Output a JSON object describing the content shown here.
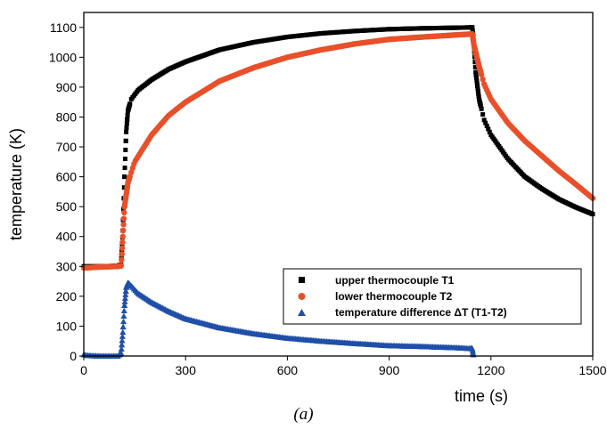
{
  "caption": "(a)",
  "chart_data": {
    "type": "scatter",
    "xlabel": "time (s)",
    "ylabel": "temperature (K)",
    "xlim": [
      0,
      1500
    ],
    "ylim": [
      0,
      1150
    ],
    "x_ticks": [
      0,
      300,
      600,
      900,
      1200,
      1500
    ],
    "y_ticks": [
      0,
      100,
      200,
      300,
      400,
      500,
      600,
      700,
      800,
      900,
      1000,
      1100
    ],
    "x_tick_labels": [
      "0",
      "300",
      "600",
      "900",
      "1200",
      "1500"
    ],
    "y_tick_labels": [
      "0",
      "100",
      "200",
      "300",
      "400",
      "500",
      "600",
      "700",
      "800",
      "900",
      "1000",
      "1100"
    ],
    "grid": false,
    "legend_position": "bottom-right",
    "series": [
      {
        "name": "upper thermocouple T1",
        "marker": "square",
        "color": "#000000",
        "points": [
          [
            0,
            300
          ],
          [
            50,
            300
          ],
          [
            100,
            302
          ],
          [
            110,
            305
          ],
          [
            115,
            420
          ],
          [
            120,
            600
          ],
          [
            125,
            750
          ],
          [
            130,
            820
          ],
          [
            140,
            860
          ],
          [
            160,
            890
          ],
          [
            200,
            925
          ],
          [
            250,
            960
          ],
          [
            300,
            985
          ],
          [
            400,
            1025
          ],
          [
            500,
            1050
          ],
          [
            600,
            1068
          ],
          [
            700,
            1080
          ],
          [
            800,
            1088
          ],
          [
            900,
            1094
          ],
          [
            1000,
            1097
          ],
          [
            1100,
            1099
          ],
          [
            1145,
            1100
          ],
          [
            1148,
            1070
          ],
          [
            1155,
            950
          ],
          [
            1165,
            860
          ],
          [
            1180,
            790
          ],
          [
            1200,
            740
          ],
          [
            1250,
            660
          ],
          [
            1300,
            600
          ],
          [
            1350,
            560
          ],
          [
            1400,
            525
          ],
          [
            1450,
            498
          ],
          [
            1500,
            475
          ]
        ]
      },
      {
        "name": "lower thermocouple T2",
        "marker": "circle",
        "color": "#e8502a",
        "points": [
          [
            0,
            295
          ],
          [
            50,
            298
          ],
          [
            100,
            300
          ],
          [
            110,
            302
          ],
          [
            115,
            400
          ],
          [
            120,
            500
          ],
          [
            130,
            580
          ],
          [
            150,
            650
          ],
          [
            200,
            740
          ],
          [
            250,
            805
          ],
          [
            300,
            850
          ],
          [
            400,
            920
          ],
          [
            500,
            965
          ],
          [
            600,
            1000
          ],
          [
            700,
            1025
          ],
          [
            800,
            1045
          ],
          [
            900,
            1060
          ],
          [
            1000,
            1068
          ],
          [
            1100,
            1075
          ],
          [
            1145,
            1078
          ],
          [
            1150,
            1040
          ],
          [
            1165,
            970
          ],
          [
            1180,
            910
          ],
          [
            1200,
            860
          ],
          [
            1250,
            780
          ],
          [
            1300,
            720
          ],
          [
            1350,
            670
          ],
          [
            1400,
            620
          ],
          [
            1450,
            575
          ],
          [
            1500,
            528
          ]
        ]
      },
      {
        "name": "temperature difference ΔT (T1-T2)",
        "marker": "triangle",
        "color": "#1f4fa8",
        "points": [
          [
            0,
            5
          ],
          [
            10,
            2
          ],
          [
            50,
            0
          ],
          [
            100,
            0
          ],
          [
            110,
            10
          ],
          [
            115,
            80
          ],
          [
            120,
            170
          ],
          [
            125,
            230
          ],
          [
            130,
            245
          ],
          [
            140,
            235
          ],
          [
            160,
            210
          ],
          [
            200,
            180
          ],
          [
            250,
            150
          ],
          [
            300,
            125
          ],
          [
            400,
            95
          ],
          [
            500,
            75
          ],
          [
            600,
            60
          ],
          [
            700,
            50
          ],
          [
            800,
            42
          ],
          [
            900,
            35
          ],
          [
            1000,
            32
          ],
          [
            1100,
            28
          ],
          [
            1145,
            25
          ],
          [
            1148,
            5
          ]
        ]
      }
    ]
  }
}
